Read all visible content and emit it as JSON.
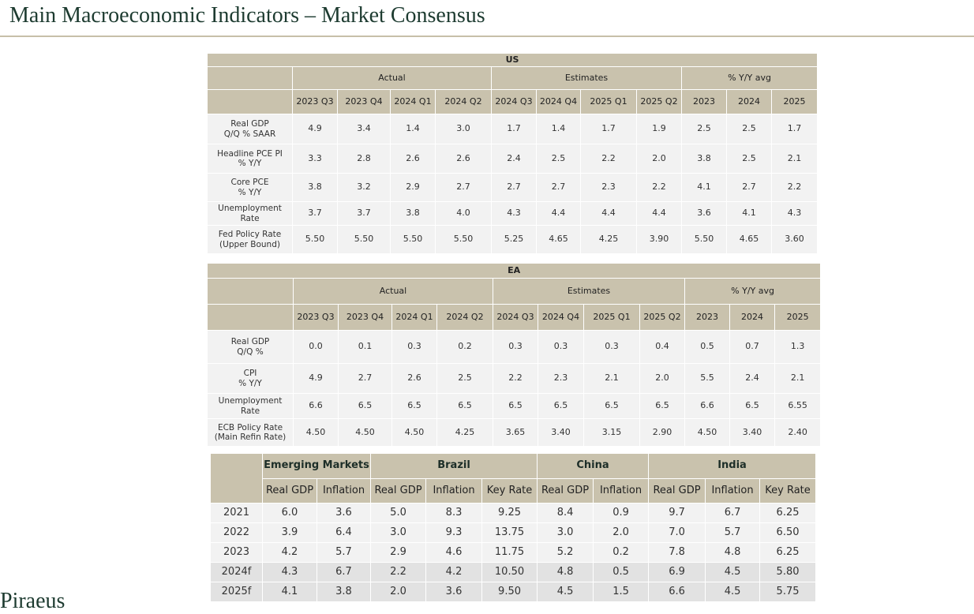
{
  "header": {
    "title": "Main Macroeconomic Indicators – Market Consensus"
  },
  "tables": [
    {
      "title": "US",
      "groups": [
        "Actual",
        "Estimates",
        "% Y/Y avg"
      ],
      "columns": [
        "2023 Q3",
        "2023 Q4",
        "2024 Q1",
        "2024 Q2",
        "2024 Q3",
        "2024 Q4",
        "2025 Q1",
        "2025 Q2",
        "2023",
        "2024",
        "2025"
      ],
      "rows": [
        {
          "label": [
            "Real GDP",
            "Q/Q % SAAR"
          ],
          "values": [
            "4.9",
            "3.4",
            "1.4",
            "3.0",
            "1.7",
            "1.4",
            "1.7",
            "1.9",
            "2.5",
            "2.5",
            "1.7"
          ]
        },
        {
          "label": [
            "Headline PCE PI",
            "% Y/Y"
          ],
          "values": [
            "3.3",
            "2.8",
            "2.6",
            "2.6",
            "2.4",
            "2.5",
            "2.2",
            "2.0",
            "3.8",
            "2.5",
            "2.1"
          ]
        },
        {
          "label": [
            "Core PCE",
            "% Y/Y"
          ],
          "values": [
            "3.8",
            "3.2",
            "2.9",
            "2.7",
            "2.7",
            "2.7",
            "2.3",
            "2.2",
            "4.1",
            "2.7",
            "2.2"
          ]
        },
        {
          "label": [
            "Unemployment",
            "Rate"
          ],
          "values": [
            "3.7",
            "3.7",
            "3.8",
            "4.0",
            "4.3",
            "4.4",
            "4.4",
            "4.4",
            "3.6",
            "4.1",
            "4.3"
          ]
        },
        {
          "label": [
            "Fed Policy Rate",
            "(Upper Bound)"
          ],
          "values": [
            "5.50",
            "5.50",
            "5.50",
            "5.50",
            "5.25",
            "4.65",
            "4.25",
            "3.90",
            "5.50",
            "4.65",
            "3.60"
          ]
        }
      ]
    },
    {
      "title": "EA",
      "groups": [
        "Actual",
        "Estimates",
        "% Y/Y avg"
      ],
      "columns": [
        "2023 Q3",
        "2023 Q4",
        "2024 Q1",
        "2024 Q2",
        "2024 Q3",
        "2024 Q4",
        "2025 Q1",
        "2025 Q2",
        "2023",
        "2024",
        "2025"
      ],
      "rows": [
        {
          "label": [
            "Real GDP",
            "Q/Q %"
          ],
          "values": [
            "0.0",
            "0.1",
            "0.3",
            "0.2",
            "0.3",
            "0.3",
            "0.3",
            "0.4",
            "0.5",
            "0.7",
            "1.3"
          ]
        },
        {
          "label": [
            "CPI",
            "% Y/Y"
          ],
          "values": [
            "4.9",
            "2.7",
            "2.6",
            "2.5",
            "2.2",
            "2.3",
            "2.1",
            "2.0",
            "5.5",
            "2.4",
            "2.1"
          ]
        },
        {
          "label": [
            "Unemployment",
            "Rate"
          ],
          "values": [
            "6.6",
            "6.5",
            "6.5",
            "6.5",
            "6.5",
            "6.5",
            "6.5",
            "6.5",
            "6.6",
            "6.5",
            "6.55"
          ]
        },
        {
          "label": [
            "ECB Policy Rate",
            "(Main Refin Rate)"
          ],
          "values": [
            "4.50",
            "4.50",
            "4.50",
            "4.25",
            "3.65",
            "3.40",
            "3.15",
            "2.90",
            "4.50",
            "3.40",
            "2.40"
          ]
        }
      ]
    },
    {
      "groups": [
        "Emerging Markets",
        "Brazil",
        "China",
        "India"
      ],
      "columns": [
        "Real GDP",
        "Inflation",
        "Real GDP",
        "Inflation",
        "Key Rate",
        "Real GDP",
        "Inflation",
        "Real GDP",
        "Inflation",
        "Key Rate"
      ],
      "rows": [
        {
          "label": [
            "2021"
          ],
          "values": [
            "6.0",
            "3.6",
            "5.0",
            "8.3",
            "9.25",
            "8.4",
            "0.9",
            "9.7",
            "6.7",
            "6.25"
          ]
        },
        {
          "label": [
            "2022"
          ],
          "values": [
            "3.9",
            "6.4",
            "3.0",
            "9.3",
            "13.75",
            "3.0",
            "2.0",
            "7.0",
            "5.7",
            "6.50"
          ]
        },
        {
          "label": [
            "2023"
          ],
          "values": [
            "4.2",
            "5.7",
            "2.9",
            "4.6",
            "11.75",
            "5.2",
            "0.2",
            "7.8",
            "4.8",
            "6.25"
          ]
        },
        {
          "label": [
            "2024f"
          ],
          "values": [
            "4.3",
            "6.7",
            "2.2",
            "4.2",
            "10.50",
            "4.8",
            "0.5",
            "6.9",
            "4.5",
            "5.80"
          ]
        },
        {
          "label": [
            "2025f"
          ],
          "values": [
            "4.1",
            "3.8",
            "2.0",
            "3.6",
            "9.50",
            "4.5",
            "1.5",
            "6.6",
            "4.5",
            "5.75"
          ]
        }
      ]
    }
  ],
  "footer": {
    "logo": "Piraeus"
  }
}
